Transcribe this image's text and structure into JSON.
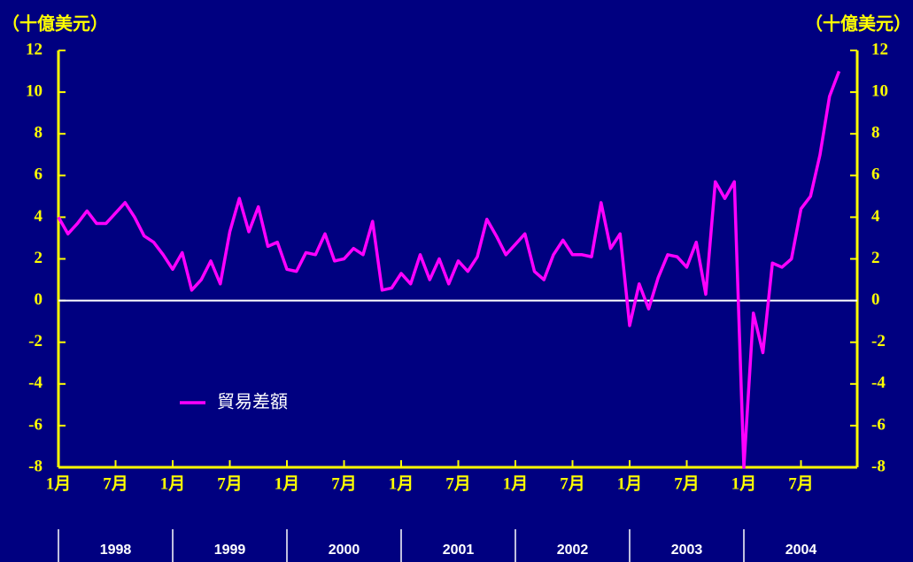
{
  "chart_data": {
    "type": "line",
    "y_label": "（十億美元）",
    "y2_label": "（十億美元）",
    "categories": [
      "1月",
      null,
      null,
      null,
      null,
      null,
      "7月",
      null,
      null,
      null,
      null,
      null,
      "1月",
      null,
      null,
      null,
      null,
      null,
      "7月",
      null,
      null,
      null,
      null,
      null,
      "1月",
      null,
      null,
      null,
      null,
      null,
      "7月",
      null,
      null,
      null,
      null,
      null,
      "1月",
      null,
      null,
      null,
      null,
      null,
      "7月",
      null,
      null,
      null,
      null,
      null,
      "1月",
      null,
      null,
      null,
      null,
      null,
      "7月",
      null,
      null,
      null,
      null,
      null,
      "1月",
      null,
      null,
      null,
      null,
      null,
      "7月",
      null,
      null,
      null,
      null,
      null,
      "1月",
      null,
      null,
      null,
      null,
      null,
      "7月",
      null,
      null,
      null,
      null
    ],
    "years": [
      "1998",
      "1999",
      "2000",
      "2001",
      "2002",
      "2003",
      "2004"
    ],
    "series": [
      {
        "name": "貿易差額",
        "color": "#ff00ff",
        "values": [
          4.0,
          3.2,
          3.7,
          4.3,
          3.7,
          3.7,
          4.2,
          4.7,
          4.0,
          3.1,
          2.8,
          2.2,
          1.5,
          2.3,
          0.5,
          1.0,
          1.9,
          0.8,
          3.3,
          4.9,
          3.3,
          4.5,
          2.6,
          2.8,
          1.5,
          1.4,
          2.3,
          2.2,
          3.2,
          1.9,
          2.0,
          2.5,
          2.2,
          3.8,
          0.5,
          0.6,
          1.3,
          0.8,
          2.2,
          1.0,
          2.0,
          0.8,
          1.9,
          1.4,
          2.1,
          3.9,
          3.1,
          2.2,
          2.7,
          3.2,
          1.4,
          1.0,
          2.2,
          2.9,
          2.2,
          2.2,
          2.1,
          4.7,
          2.5,
          3.2,
          -1.2,
          0.8,
          -0.4,
          1.1,
          2.2,
          2.1,
          1.6,
          2.8,
          0.3,
          5.7,
          4.9,
          5.7,
          -8.0,
          -0.6,
          -2.5,
          1.8,
          1.6,
          2.0,
          4.4,
          5.0,
          7.0,
          9.8,
          11.0
        ]
      }
    ],
    "ylim": [
      -8,
      12
    ],
    "yticks": [
      -8,
      -6,
      -4,
      -2,
      0,
      2,
      4,
      6,
      8,
      10,
      12
    ],
    "zero_line": true
  }
}
